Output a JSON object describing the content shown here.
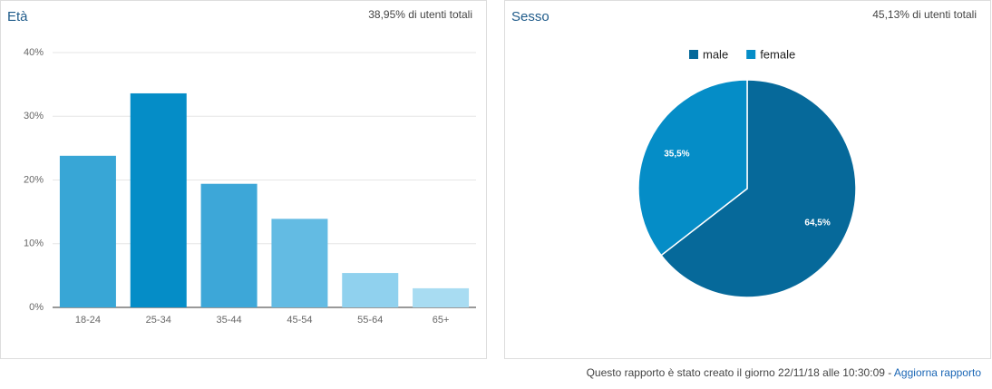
{
  "chart_data": [
    {
      "type": "bar",
      "title": "Età",
      "subtitle": "38,95% di utenti totali",
      "categories": [
        "18-24",
        "25-34",
        "35-44",
        "45-54",
        "55-64",
        "65+"
      ],
      "values": [
        23.8,
        33.6,
        19.4,
        13.9,
        5.4,
        3.0
      ],
      "colors": [
        "#38a6d6",
        "#058dc7",
        "#3da7d8",
        "#63bbe3",
        "#90d1ee",
        "#a8dcf2"
      ],
      "ylim": [
        0,
        40
      ],
      "yticks": [
        {
          "value": 0,
          "label": "0%"
        },
        {
          "value": 10,
          "label": "10%"
        },
        {
          "value": 20,
          "label": "20%"
        },
        {
          "value": 30,
          "label": "30%"
        },
        {
          "value": 40,
          "label": "40%"
        }
      ],
      "grid": true
    },
    {
      "type": "pie",
      "title": "Sesso",
      "subtitle": "45,13% di utenti totali",
      "categories": [
        "male",
        "female"
      ],
      "values": [
        64.5,
        35.5
      ],
      "value_labels": [
        "64,5%",
        "35,5%"
      ],
      "colors": [
        "#06699a",
        "#058dc7"
      ],
      "legend": "top"
    }
  ],
  "footer": {
    "text": "Questo rapporto è stato creato il giorno 22/11/18 alle 10:30:09 - ",
    "link": "Aggiorna rapporto"
  }
}
